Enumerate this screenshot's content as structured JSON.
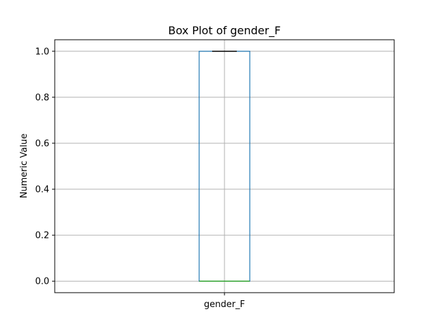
{
  "chart_data": {
    "type": "box",
    "title": "Box Plot of gender_F",
    "xlabel": "",
    "ylabel": "Numeric Value",
    "ylim": [
      -0.05,
      1.05
    ],
    "yticks": [
      0.0,
      0.2,
      0.4,
      0.6,
      0.8,
      1.0
    ],
    "ytick_labels": [
      "0.0",
      "0.2",
      "0.4",
      "0.6",
      "0.8",
      "1.0"
    ],
    "categories": [
      "gender_F"
    ],
    "boxes": [
      {
        "name": "gender_F",
        "min": 0.0,
        "q1": 0.0,
        "median": 0.0,
        "q3": 1.0,
        "max": 1.0
      }
    ],
    "grid": true,
    "colors": {
      "box": "#1f77b4",
      "median": "#2ca02c",
      "whisker_cap": "#000000",
      "grid": "#b0b0b0",
      "axes": "#000000"
    }
  }
}
